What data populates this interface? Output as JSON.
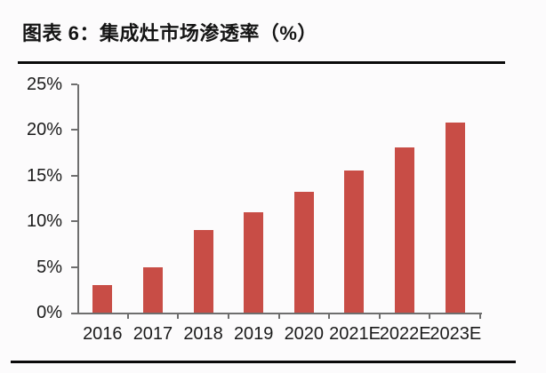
{
  "page": {
    "title": "图表 6：集成灶市场渗透率（%）"
  },
  "chart_data": {
    "type": "bar",
    "title": "集成灶市场渗透率（%）",
    "categories": [
      "2016",
      "2017",
      "2018",
      "2019",
      "2020",
      "2021E",
      "2022E",
      "2023E"
    ],
    "values": [
      3,
      5,
      9,
      11,
      13.2,
      15.6,
      18.1,
      20.8
    ],
    "xlabel": "",
    "ylabel": "",
    "ylim": [
      0,
      25
    ],
    "yticks": [
      0,
      5,
      10,
      15,
      20,
      25
    ],
    "ytick_labels": [
      "0%",
      "5%",
      "10%",
      "15%",
      "20%",
      "25%"
    ],
    "grid": false,
    "legend": false,
    "colors": {
      "bar": "#c84d46",
      "axis": "#6e6e6e",
      "text": "#1a1a1a",
      "rule": "#0a0a0a"
    }
  }
}
